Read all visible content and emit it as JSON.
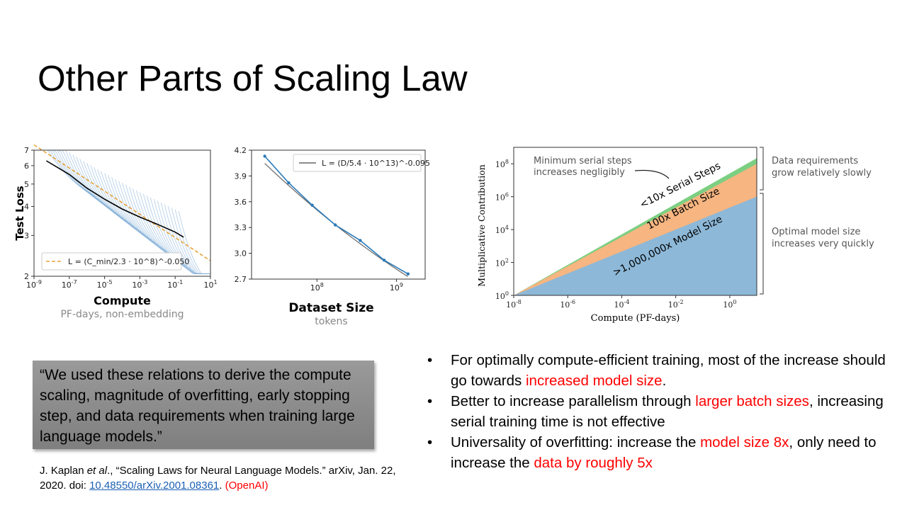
{
  "slide": {
    "title": "Other Parts of Scaling Law"
  },
  "quote": {
    "text": "“We used these relations to derive the compute scaling, magnitude of overfitting, early stopping step, and data requirements when training large language models.”"
  },
  "citation": {
    "prefix": "J. Kaplan ",
    "etal": "et al",
    "middle": "., “Scaling Laws for Neural Language Models.” arXiv, Jan. 22, 2020. doi: ",
    "doi": "10.48550/arXiv.2001.08361",
    "period": ". ",
    "org": "(OpenAI)"
  },
  "bullets": [
    {
      "parts": [
        {
          "text": "For optimally compute-efficient training, most of the increase should go towards ",
          "red": false
        },
        {
          "text": "increased model size",
          "red": true
        },
        {
          "text": ".",
          "red": false
        }
      ]
    },
    {
      "parts": [
        {
          "text": "Better to increase parallelism through ",
          "red": false
        },
        {
          "text": "larger batch sizes",
          "red": true
        },
        {
          "text": ", increasing serial training time is not effective",
          "red": false
        }
      ]
    },
    {
      "parts": [
        {
          "text": "Universality of overfitting: increase the ",
          "red": false
        },
        {
          "text": "model size 8x",
          "red": true
        },
        {
          "text": ", only need to increase the ",
          "red": false
        },
        {
          "text": "data by roughly 5x",
          "red": true
        }
      ]
    }
  ],
  "chart_data": [
    {
      "type": "line",
      "xscale": "log",
      "yscale": "log",
      "xlabel": "Compute",
      "xsublabel": "PF-days, non-embedding",
      "ylabel": "Test Loss",
      "xlim": [
        1e-09,
        10
      ],
      "ylim": [
        2,
        7
      ],
      "xticks": [
        "10^-9",
        "10^-7",
        "10^-5",
        "10^-3",
        "10^-1",
        "10^1"
      ],
      "yticks": [
        2,
        3,
        4,
        5,
        6,
        7
      ],
      "legend": "L = (C_min/2.3 · 10^8)^-0.050",
      "fit": {
        "constant": 230000000.0,
        "exponent": -0.05
      },
      "series": [
        {
          "role": "frontier",
          "x": [
            5e-09,
            1e-07,
            1e-06,
            1e-05,
            0.0001,
            0.001,
            0.01,
            0.1,
            0.3
          ],
          "y": [
            6.3,
            5.5,
            4.8,
            4.3,
            3.9,
            3.6,
            3.35,
            3.1,
            2.95
          ]
        }
      ],
      "colors": {
        "fit": "#e8a33a",
        "frontier": "#000000",
        "runs": "#7aa9d6"
      }
    },
    {
      "type": "line",
      "xscale": "log",
      "xlabel": "Dataset Size",
      "xsublabel": "tokens",
      "xlim": [
        15000000.0,
        2300000000.0
      ],
      "ylim": [
        2.7,
        4.2
      ],
      "xticks": [
        "10^8",
        "10^9"
      ],
      "yticks": [
        2.7,
        3.0,
        3.3,
        3.6,
        3.9,
        4.2
      ],
      "legend": "L = (D/5.4 · 10^13)^-0.095",
      "fit": {
        "constant": 54000000000000.0,
        "exponent": -0.095
      },
      "series": [
        {
          "name": "",
          "x": [
            22000000.0,
            44000000.0,
            87000000.0,
            170000000.0,
            350000000.0,
            700000000.0,
            1400000000.0
          ],
          "y": [
            4.13,
            3.82,
            3.56,
            3.33,
            3.15,
            2.92,
            2.76
          ]
        }
      ],
      "colors": {
        "fit": "#666666",
        "data": "#2b7bb9"
      }
    },
    {
      "type": "area",
      "xscale": "log",
      "yscale": "log",
      "xlabel": "Compute (PF-days)",
      "ylabel": "Multiplicative Contribution",
      "xlim": [
        1e-08,
        10
      ],
      "ylim": [
        1,
        1000000000.0
      ],
      "xticks": [
        "10^-8",
        "10^-6",
        "10^-4",
        "10^-2",
        "10^0"
      ],
      "yticks": [
        "10^0",
        "10^2",
        "10^4",
        "10^6",
        "10^8"
      ],
      "series": [
        {
          "name": ">1,000,000x Model Size",
          "x": [
            1e-08,
            10
          ],
          "y": [
            1,
            1000000.0
          ]
        },
        {
          "name": "100x Batch Size",
          "x": [
            1e-08,
            10
          ],
          "y": [
            1,
            100000000.0
          ]
        },
        {
          "name": "<10x Serial Steps",
          "x": [
            1e-08,
            10
          ],
          "y": [
            1,
            220000000.0
          ]
        }
      ],
      "annotations": [
        "Minimum serial steps increases negligibly",
        "Data requirements grow relatively slowly",
        "Optimal model size increases very quickly"
      ],
      "colors": {
        "model": "#8db8d8",
        "batch": "#f6b581",
        "serial": "#7ccf82"
      }
    }
  ]
}
